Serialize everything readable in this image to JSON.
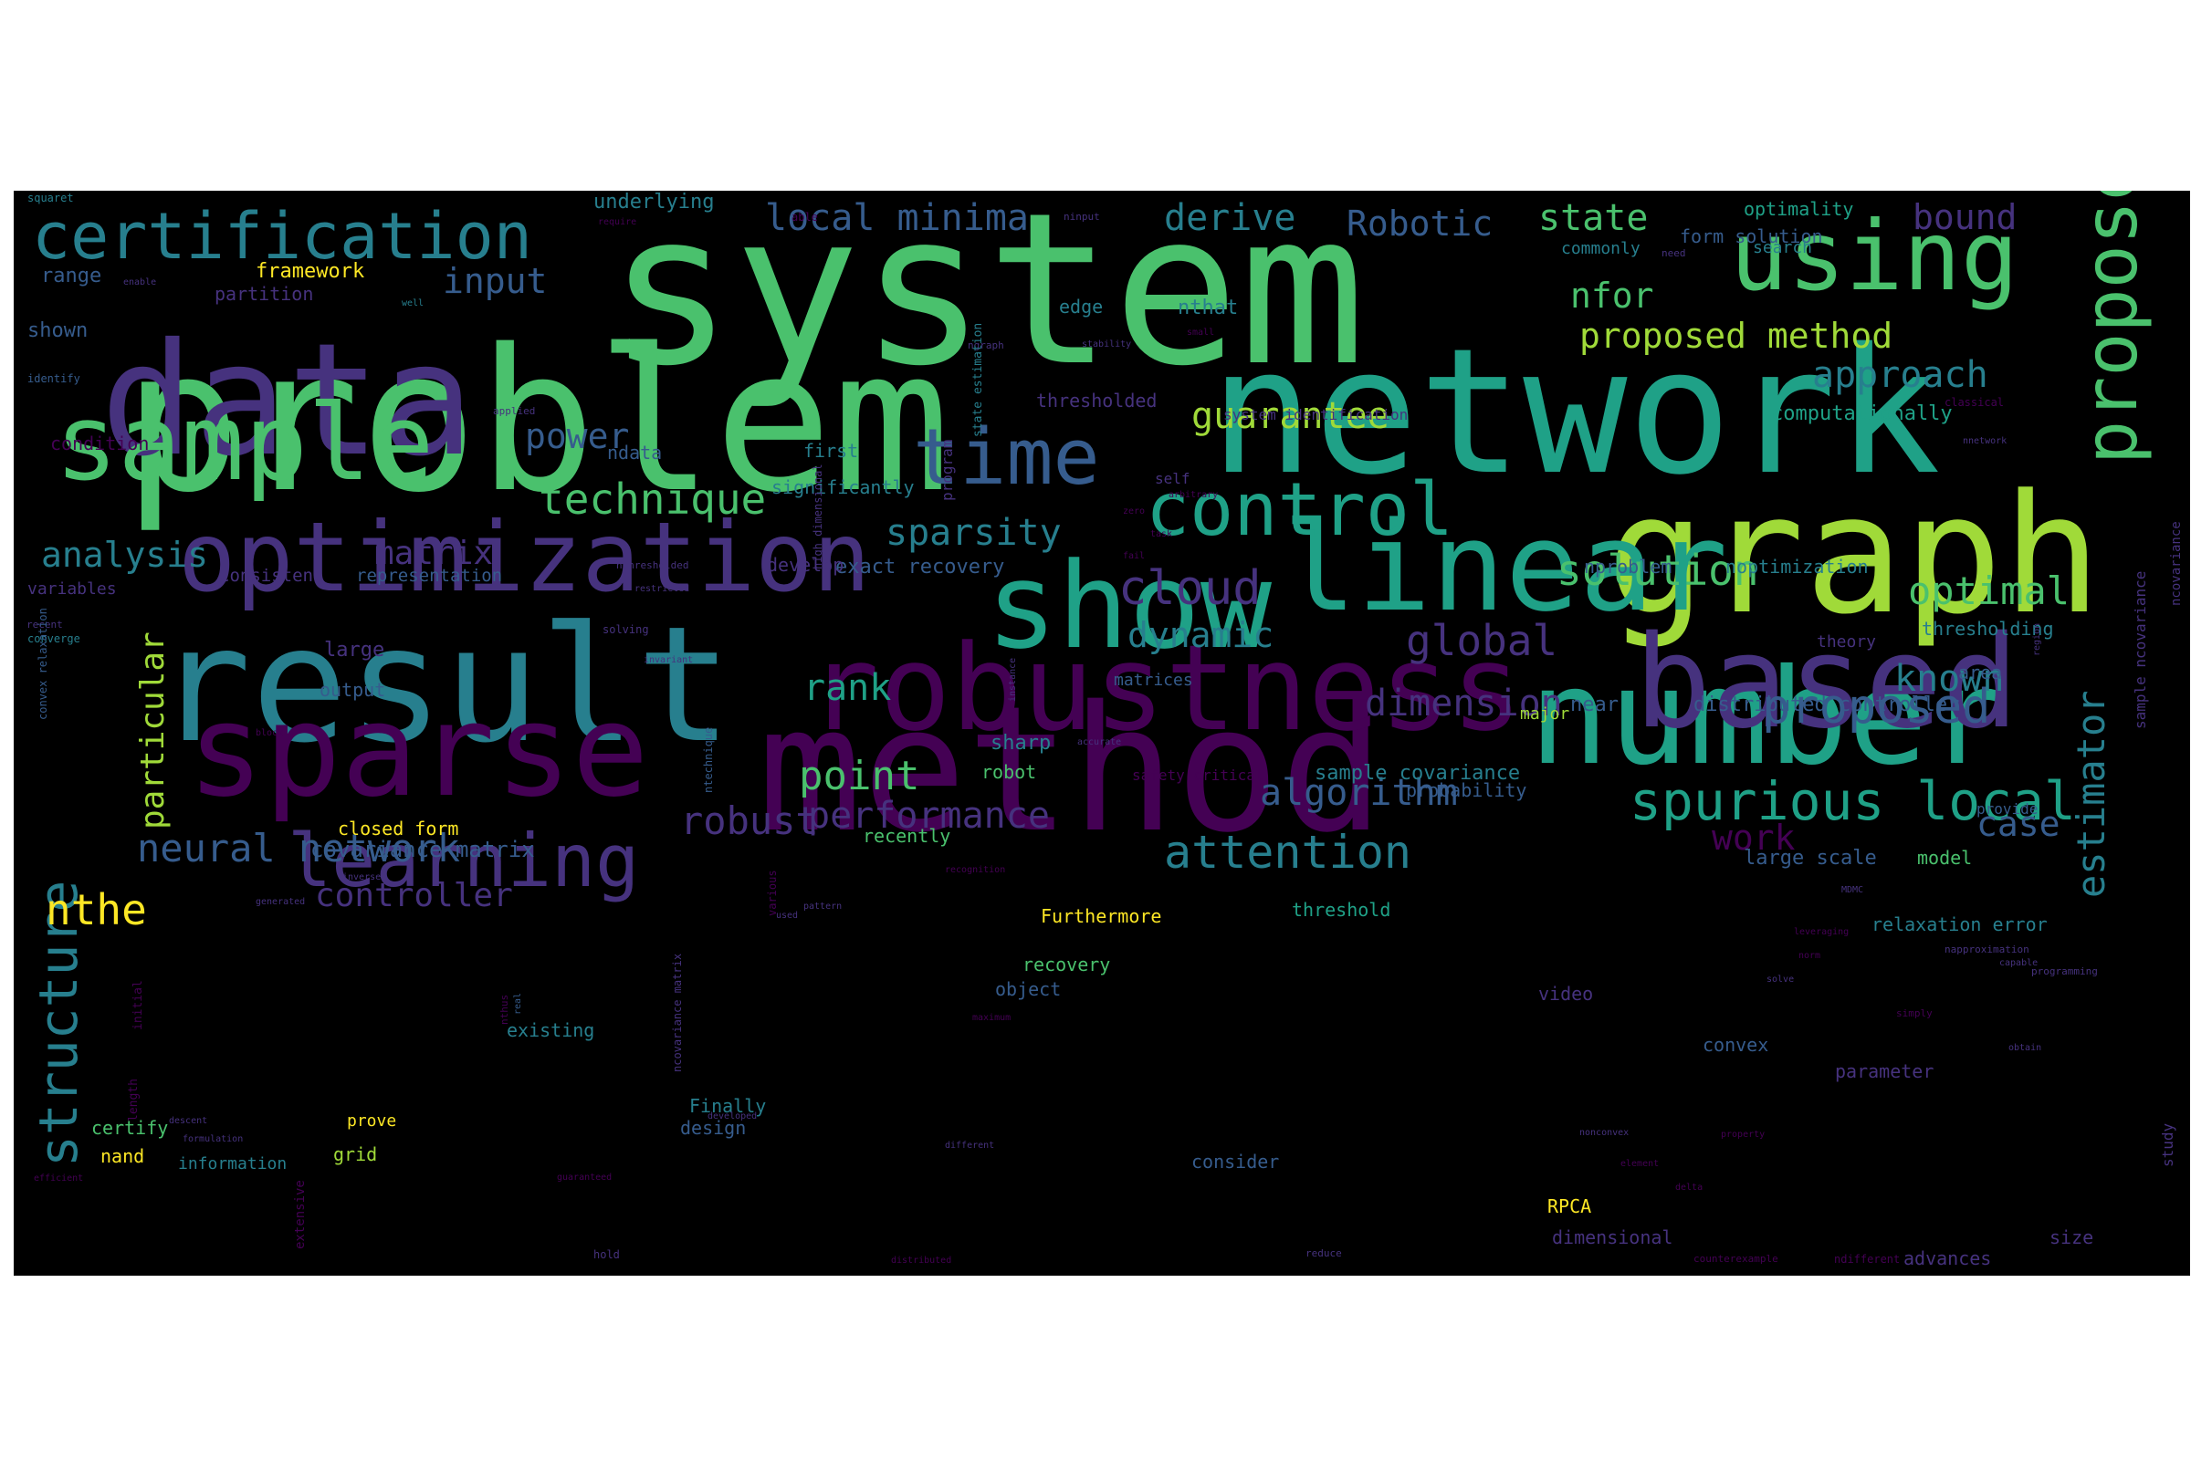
{
  "background_color": "#000000",
  "palette": [
    "#440154",
    "#46327e",
    "#365c8d",
    "#277f8e",
    "#1fa187",
    "#4ac16d",
    "#a0da39",
    "#fde725"
  ],
  "words": [
    {
      "text": "system",
      "color": "#4ac16d"
    },
    {
      "text": "problem",
      "color": "#4ac16d"
    },
    {
      "text": "network",
      "color": "#1fa187"
    },
    {
      "text": "method",
      "color": "#440154"
    },
    {
      "text": "result",
      "color": "#277f8e"
    },
    {
      "text": "data",
      "color": "#46327e"
    },
    {
      "text": "graph",
      "color": "#a0da39"
    },
    {
      "text": "robustness",
      "color": "#440154"
    },
    {
      "text": "linear",
      "color": "#1fa187"
    },
    {
      "text": "number",
      "color": "#1fa187"
    },
    {
      "text": "show",
      "color": "#1fa187"
    },
    {
      "text": "based",
      "color": "#46327e"
    },
    {
      "text": "sparse",
      "color": "#440154"
    },
    {
      "text": "sample",
      "color": "#4ac16d"
    },
    {
      "text": "optimization",
      "color": "#46327e"
    },
    {
      "text": "using",
      "color": "#4ac16d"
    },
    {
      "text": "certification",
      "color": "#277f8e"
    },
    {
      "text": "structure",
      "color": "#277f8e"
    },
    {
      "text": "control",
      "color": "#1fa187"
    },
    {
      "text": "learning",
      "color": "#46327e"
    },
    {
      "text": "time",
      "color": "#365c8d"
    },
    {
      "text": "propose",
      "color": "#4ac16d"
    },
    {
      "text": "spurious local",
      "color": "#1fa187"
    },
    {
      "text": "attention",
      "color": "#277f8e"
    },
    {
      "text": "robust",
      "color": "#46327e"
    },
    {
      "text": "proposed",
      "color": "#365c8d"
    },
    {
      "text": "neural network",
      "color": "#365c8d"
    },
    {
      "text": "technique",
      "color": "#4ac16d"
    },
    {
      "text": "solution",
      "color": "#4ac16d"
    },
    {
      "text": "local minima",
      "color": "#365c8d"
    },
    {
      "text": "state",
      "color": "#4ac16d"
    },
    {
      "text": "guarantee",
      "color": "#a0da39"
    },
    {
      "text": "estimator",
      "color": "#277f8e"
    },
    {
      "text": "sparsity",
      "color": "#277f8e"
    },
    {
      "text": "cloud",
      "color": "#46327e"
    },
    {
      "text": "optimal",
      "color": "#4ac16d"
    },
    {
      "text": "dimension",
      "color": "#46327e"
    },
    {
      "text": "global",
      "color": "#46327e"
    },
    {
      "text": "proposed method",
      "color": "#a0da39"
    },
    {
      "text": "performance",
      "color": "#46327e"
    },
    {
      "text": "controller",
      "color": "#46327e"
    },
    {
      "text": "algorithm",
      "color": "#365c8d"
    },
    {
      "text": "approach",
      "color": "#277f8e"
    },
    {
      "text": "analysis",
      "color": "#277f8e"
    },
    {
      "text": "point",
      "color": "#4ac16d"
    },
    {
      "text": "particular",
      "color": "#a0da39"
    },
    {
      "text": "derive",
      "color": "#277f8e"
    },
    {
      "text": "Robotic",
      "color": "#365c8d"
    },
    {
      "text": "bound",
      "color": "#46327e"
    },
    {
      "text": "power",
      "color": "#365c8d"
    },
    {
      "text": "input",
      "color": "#365c8d"
    },
    {
      "text": "matrix",
      "color": "#46327e"
    },
    {
      "text": "rank",
      "color": "#1fa187"
    },
    {
      "text": "dynamic",
      "color": "#277f8e"
    },
    {
      "text": "known",
      "color": "#277f8e"
    },
    {
      "text": "nfor",
      "color": "#4ac16d"
    },
    {
      "text": "work",
      "color": "#440154"
    },
    {
      "text": "case",
      "color": "#365c8d"
    },
    {
      "text": "nthe",
      "color": "#fde725"
    },
    {
      "text": "covariance matrix",
      "color": "#365c8d"
    },
    {
      "text": "exact recovery",
      "color": "#365c8d"
    },
    {
      "text": "framework",
      "color": "#fde725"
    },
    {
      "text": "underlying",
      "color": "#277f8e"
    },
    {
      "text": "optimality",
      "color": "#1fa187"
    },
    {
      "text": "form solution",
      "color": "#365c8d"
    },
    {
      "text": "commonly",
      "color": "#277f8e"
    },
    {
      "text": "range",
      "color": "#365c8d"
    },
    {
      "text": "partition",
      "color": "#46327e"
    },
    {
      "text": "shown",
      "color": "#365c8d"
    },
    {
      "text": "nthat",
      "color": "#277f8e"
    },
    {
      "text": "edge",
      "color": "#277f8e"
    },
    {
      "text": "thresholded",
      "color": "#46327e"
    },
    {
      "text": "computationally",
      "color": "#1fa187"
    },
    {
      "text": "system identification",
      "color": "#46327e"
    },
    {
      "text": "significantly",
      "color": "#277f8e"
    },
    {
      "text": "first",
      "color": "#277f8e"
    },
    {
      "text": "ndata",
      "color": "#365c8d"
    },
    {
      "text": "condition",
      "color": "#440154"
    },
    {
      "text": "self",
      "color": "#46327e"
    },
    {
      "text": "consistent",
      "color": "#46327e"
    },
    {
      "text": "representation",
      "color": "#365c8d"
    },
    {
      "text": "develop",
      "color": "#46327e"
    },
    {
      "text": "nproblem",
      "color": "#365c8d"
    },
    {
      "text": "noptimization",
      "color": "#277f8e"
    },
    {
      "text": "variables",
      "color": "#46327e"
    },
    {
      "text": "large",
      "color": "#46327e"
    },
    {
      "text": "output",
      "color": "#365c8d"
    },
    {
      "text": "matrices",
      "color": "#365c8d"
    },
    {
      "text": "near",
      "color": "#365c8d"
    },
    {
      "text": "major",
      "color": "#a0da39"
    },
    {
      "text": "theory",
      "color": "#46327e"
    },
    {
      "text": "thresholding",
      "color": "#277f8e"
    },
    {
      "text": "area",
      "color": "#365c8d"
    },
    {
      "text": "distributed controller",
      "color": "#365c8d"
    },
    {
      "text": "sharp",
      "color": "#277f8e"
    },
    {
      "text": "robot",
      "color": "#4ac16d"
    },
    {
      "text": "safety critical",
      "color": "#440154"
    },
    {
      "text": "sample covariance",
      "color": "#277f8e"
    },
    {
      "text": "probability",
      "color": "#365c8d"
    },
    {
      "text": "closed form",
      "color": "#fde725"
    },
    {
      "text": "recently",
      "color": "#4ac16d"
    },
    {
      "text": "large scale",
      "color": "#365c8d"
    },
    {
      "text": "model",
      "color": "#4ac16d"
    },
    {
      "text": "provide",
      "color": "#365c8d"
    },
    {
      "text": "Furthermore",
      "color": "#fde725"
    },
    {
      "text": "threshold",
      "color": "#1fa187"
    },
    {
      "text": "relaxation error",
      "color": "#277f8e"
    },
    {
      "text": "recovery",
      "color": "#4ac16d"
    },
    {
      "text": "object",
      "color": "#365c8d"
    },
    {
      "text": "video",
      "color": "#46327e"
    },
    {
      "text": "existing",
      "color": "#277f8e"
    },
    {
      "text": "Finally",
      "color": "#277f8e"
    },
    {
      "text": "prove",
      "color": "#fde725"
    },
    {
      "text": "certify",
      "color": "#4ac16d"
    },
    {
      "text": "convex",
      "color": "#365c8d"
    },
    {
      "text": "parameter",
      "color": "#46327e"
    },
    {
      "text": "design",
      "color": "#365c8d"
    },
    {
      "text": "grid",
      "color": "#a0da39"
    },
    {
      "text": "nand",
      "color": "#fde725"
    },
    {
      "text": "consider",
      "color": "#365c8d"
    },
    {
      "text": "information",
      "color": "#277f8e"
    },
    {
      "text": "RPCA",
      "color": "#fde725"
    },
    {
      "text": "dimensional",
      "color": "#46327e"
    },
    {
      "text": "size",
      "color": "#46327e"
    },
    {
      "text": "advances",
      "color": "#46327e"
    },
    {
      "text": "squaret",
      "color": "#277f8e"
    },
    {
      "text": "enable",
      "color": "#46327e"
    },
    {
      "text": "require",
      "color": "#440154"
    },
    {
      "text": "able",
      "color": "#440154"
    },
    {
      "text": "ninput",
      "color": "#46327e"
    },
    {
      "text": "need",
      "color": "#46327e"
    },
    {
      "text": "search",
      "color": "#277f8e"
    },
    {
      "text": "well",
      "color": "#277f8e"
    },
    {
      "text": "stability",
      "color": "#46327e"
    },
    {
      "text": "ngraph",
      "color": "#46327e"
    },
    {
      "text": "small",
      "color": "#440154"
    },
    {
      "text": "identify",
      "color": "#365c8d"
    },
    {
      "text": "applied",
      "color": "#46327e"
    },
    {
      "text": "classical",
      "color": "#440154"
    },
    {
      "text": "nnetwork",
      "color": "#46327e"
    },
    {
      "text": "arbitrary",
      "color": "#440154"
    },
    {
      "text": "zero",
      "color": "#440154"
    },
    {
      "text": "task",
      "color": "#440154"
    },
    {
      "text": "fail",
      "color": "#440154"
    },
    {
      "text": "nthresholded",
      "color": "#46327e"
    },
    {
      "text": "restricted",
      "color": "#46327e"
    },
    {
      "text": "solving",
      "color": "#46327e"
    },
    {
      "text": "recent",
      "color": "#46327e"
    },
    {
      "text": "converge",
      "color": "#277f8e"
    },
    {
      "text": "invariant",
      "color": "#46327e"
    },
    {
      "text": "block",
      "color": "#440154"
    },
    {
      "text": "accurate",
      "color": "#46327e"
    },
    {
      "text": "inverse",
      "color": "#46327e"
    },
    {
      "text": "recognition",
      "color": "#440154"
    },
    {
      "text": "generated",
      "color": "#46327e"
    },
    {
      "text": "pattern",
      "color": "#46327e"
    },
    {
      "text": "used",
      "color": "#46327e"
    },
    {
      "text": "descent",
      "color": "#46327e"
    },
    {
      "text": "formulation",
      "color": "#46327e"
    },
    {
      "text": "guaranteed",
      "color": "#440154"
    },
    {
      "text": "efficient",
      "color": "#440154"
    },
    {
      "text": "hold",
      "color": "#46327e"
    },
    {
      "text": "distributed",
      "color": "#440154"
    },
    {
      "text": "less",
      "color": "#46327e"
    },
    {
      "text": "reduce",
      "color": "#46327e"
    },
    {
      "text": "counterexample",
      "color": "#440154"
    },
    {
      "text": "ndifferent",
      "color": "#440154"
    },
    {
      "text": "nonconvex",
      "color": "#46327e"
    },
    {
      "text": "element",
      "color": "#440154"
    },
    {
      "text": "simply",
      "color": "#440154"
    },
    {
      "text": "capable",
      "color": "#46327e"
    },
    {
      "text": "property",
      "color": "#440154"
    },
    {
      "text": "napproximation",
      "color": "#46327e"
    },
    {
      "text": "MDMC",
      "color": "#46327e"
    },
    {
      "text": "norm",
      "color": "#440154"
    },
    {
      "text": "leveraging",
      "color": "#440154"
    },
    {
      "text": "maximum",
      "color": "#440154"
    },
    {
      "text": "solve",
      "color": "#46327e"
    },
    {
      "text": "obtain",
      "color": "#46327e"
    },
    {
      "text": "programming",
      "color": "#46327e"
    },
    {
      "text": "delta",
      "color": "#440154"
    },
    {
      "text": "developed",
      "color": "#46327e"
    },
    {
      "text": "different",
      "color": "#46327e"
    },
    {
      "text": "ntechnique",
      "color": "#365c8d"
    },
    {
      "text": "various",
      "color": "#440154"
    },
    {
      "text": "high dimensional",
      "color": "#46327e"
    },
    {
      "text": "instance",
      "color": "#46327e"
    },
    {
      "text": "program",
      "color": "#46327e"
    },
    {
      "text": "state estimation",
      "color": "#277f8e"
    },
    {
      "text": "region",
      "color": "#46327e"
    },
    {
      "text": "ncovariance",
      "color": "#46327e"
    },
    {
      "text": "sample ncovariance",
      "color": "#46327e"
    },
    {
      "text": "study",
      "color": "#46327e"
    },
    {
      "text": "convex relaxation",
      "color": "#365c8d"
    },
    {
      "text": "initial",
      "color": "#440154"
    },
    {
      "text": "length",
      "color": "#440154"
    },
    {
      "text": "extensive",
      "color": "#440154"
    },
    {
      "text": "ncovariance matrix",
      "color": "#46327e"
    },
    {
      "text": "nthus",
      "color": "#440154"
    },
    {
      "text": "real",
      "color": "#365c8d"
    }
  ]
}
